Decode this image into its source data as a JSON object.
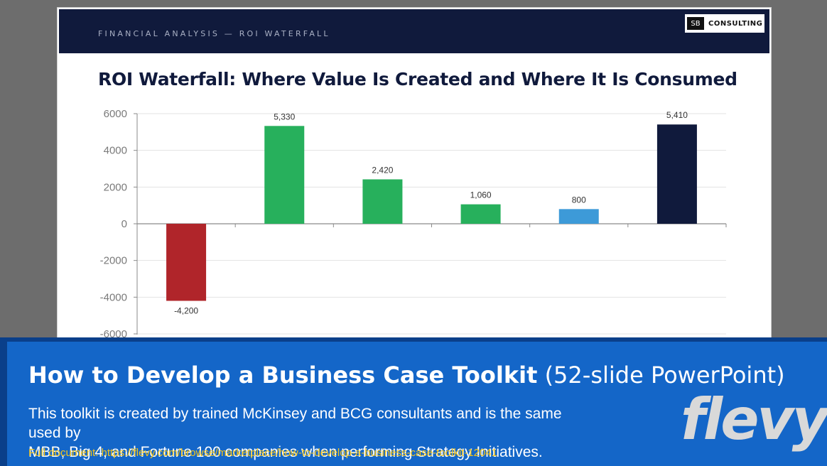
{
  "slide": {
    "section_label": "FINANCIAL ANALYSIS — ROI WATERFALL",
    "logo_mark": "SB",
    "logo_text": "CONSULTING",
    "title": "ROI Waterfall: Where Value Is Created and Where It Is Consumed"
  },
  "chart_data": {
    "type": "bar",
    "title": "",
    "xlabel": "",
    "ylabel": "",
    "ylim": [
      -6000,
      6000
    ],
    "yticks": [
      6000,
      4000,
      2000,
      0,
      -2000,
      -4000,
      -6000
    ],
    "values": [
      -4200,
      5330,
      2420,
      1060,
      800,
      5410
    ],
    "value_labels": [
      "-4,200",
      "5,330",
      "2,420",
      "1,060",
      "800",
      "5,410"
    ],
    "colors": [
      "#b0252a",
      "#27b05c",
      "#27b05c",
      "#27b05c",
      "#3d9ad8",
      "#101a3c"
    ],
    "grid": true,
    "legend": "none"
  },
  "banner": {
    "title_main": "How to Develop a Business Case Toolkit",
    "title_sub": " (52-slide PowerPoint)",
    "desc_line1": "This toolkit is created by trained McKinsey and BCG consultants and is the same used by",
    "desc_line2": "MBB, Big 4, and Fortune 100 companies when performing Strategy Initiatives.",
    "link": "Full document: https://flevy.com/browse/marketplace/how-to-develop-a-business-case-toolkit-12041",
    "brand": "flevy"
  }
}
